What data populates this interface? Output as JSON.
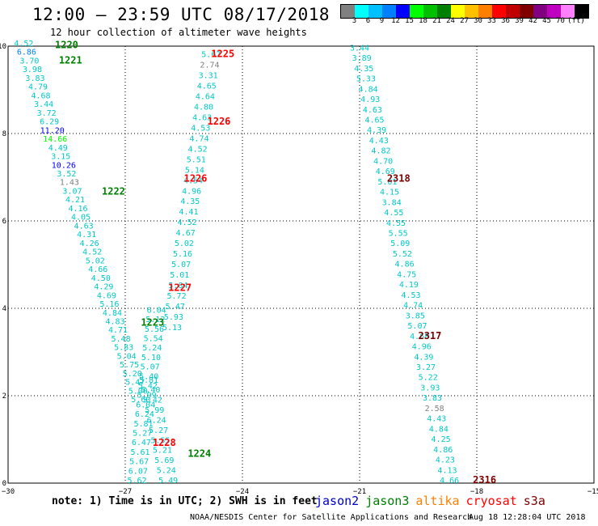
{
  "header": {
    "title": "12:00 – 23:59 UTC 08/17/2018",
    "subtitle": "12 hour collection of altimeter wave heights"
  },
  "legend": {
    "colors": [
      "#808080",
      "#00ffff",
      "#00c0ff",
      "#0080ff",
      "#0000ff",
      "#00ff00",
      "#00c000",
      "#008000",
      "#ffff00",
      "#ffc000",
      "#ff8000",
      "#ff0000",
      "#c00000",
      "#800000",
      "#800080",
      "#c000c0",
      "#ff80ff",
      "#000000"
    ],
    "labels": [
      "3",
      "6",
      "9",
      "12",
      "15",
      "18",
      "21",
      "24",
      "27",
      "30",
      "33",
      "36",
      "39",
      "42",
      "45",
      "70",
      "(ft)"
    ]
  },
  "axes": {
    "x_ticks": [
      "−30",
      "−27",
      "−24",
      "−21",
      "−18",
      "−15"
    ],
    "y_ticks": [
      "0",
      "2",
      "4",
      "6",
      "8",
      "10"
    ]
  },
  "footer": {
    "note": "note: 1) Time is in UTC; 2) SWH is in feet",
    "satellites": [
      {
        "name": "jason2",
        "color": "#0000cc"
      },
      {
        "name": "jason3",
        "color": "#008000"
      },
      {
        "name": "altika",
        "color": "#ff8000"
      },
      {
        "name": "cryosat",
        "color": "#ff0000"
      },
      {
        "name": "s3a",
        "color": "#800000"
      }
    ],
    "credit": "NOAA/NESDIS Center for Satellite Applications and Research",
    "timestamp": "Aug 18 12:28:04 UTC 2018"
  },
  "chart_data": {
    "type": "scatter",
    "xlim": [
      -30,
      -15
    ],
    "ylim": [
      0,
      10
    ],
    "grid": true,
    "pass_labels": [
      {
        "text": "1220",
        "x": -28.8,
        "y": 9.95,
        "color": "#008000"
      },
      {
        "text": "1221",
        "x": -28.7,
        "y": 9.6,
        "color": "#008000"
      },
      {
        "text": "1222",
        "x": -27.6,
        "y": 6.6,
        "color": "#008000"
      },
      {
        "text": "1223",
        "x": -26.6,
        "y": 3.6,
        "color": "#008000"
      },
      {
        "text": "1224",
        "x": -25.4,
        "y": 0.6,
        "color": "#008000"
      },
      {
        "text": "1225",
        "x": -24.8,
        "y": 9.75,
        "color": "#ff0000"
      },
      {
        "text": "1226",
        "x": -24.9,
        "y": 8.2,
        "color": "#ff0000"
      },
      {
        "text": "1226",
        "x": -25.5,
        "y": 6.9,
        "color": "#ff0000"
      },
      {
        "text": "1227",
        "x": -25.9,
        "y": 4.4,
        "color": "#ff0000"
      },
      {
        "text": "1228",
        "x": -26.3,
        "y": 0.85,
        "color": "#ff0000"
      },
      {
        "text": "2318",
        "x": -20.3,
        "y": 6.9,
        "color": "#800000"
      },
      {
        "text": "2317",
        "x": -19.5,
        "y": 3.3,
        "color": "#800000"
      },
      {
        "text": "2316",
        "x": -18.1,
        "y": 0.0,
        "color": "#800000"
      }
    ],
    "tracks": [
      {
        "name": "track-a",
        "start": [
          -29.6,
          10.0
        ],
        "end": [
          -26.6,
          1.85
        ],
        "values": [
          "4.52",
          "6.86",
          "3.70",
          "3.98",
          "3.83",
          "4.79",
          "4.68",
          "3.44",
          "3.72",
          "6.29",
          "11.20",
          "14.66",
          "4.49",
          "3.15",
          "10.26",
          "3.52",
          "1.43",
          "3.07",
          "4.21",
          "4.16",
          "4.05",
          "4.63",
          "4.31",
          "4.26",
          "4.52",
          "5.02",
          "4.66",
          "4.50",
          "4.29",
          "4.69",
          "5.16",
          "4.84",
          "4.83",
          "4.71",
          "5.48",
          "5.83",
          "5.04",
          "5.75",
          "5.20",
          "5.47",
          "5.00",
          "5.60"
        ],
        "colors": {
          "6.86": "#0080ff",
          "11.20": "#0000ff",
          "14.66": "#00ff00",
          "10.26": "#0000ff",
          "1.43": "#808080"
        }
      },
      {
        "name": "track-b",
        "start": [
          -26.2,
          3.9
        ],
        "end": [
          -26.7,
          0.0
        ],
        "values": [
          "6.04",
          "5.12",
          "5.56",
          "5.54",
          "5.24",
          "5.10",
          "5.07",
          "5.40",
          "5.42",
          "5.99",
          "6.04",
          "6.24",
          "5.81",
          "5.27",
          "6.47",
          "5.61",
          "5.67",
          "6.07",
          "5.62"
        ],
        "colors": {}
      },
      {
        "name": "track-c",
        "start": [
          -24.8,
          9.75
        ],
        "end": [
          -25.8,
          3.5
        ],
        "values": [
          "5.67",
          "2.74",
          "3.31",
          "4.65",
          "4.64",
          "4.80",
          "4.63",
          "4.53",
          "4.74",
          "4.52",
          "5.51",
          "5.14",
          "4.54",
          "4.96",
          "4.35",
          "4.41",
          "4.52",
          "4.67",
          "5.02",
          "5.16",
          "5.07",
          "5.01",
          "5.84",
          "5.72",
          "5.47",
          "5.93",
          "5.13"
        ],
        "colors": {
          "2.74": "#808080"
        }
      },
      {
        "name": "track-d",
        "start": [
          -26.4,
          2.3
        ],
        "end": [
          -25.9,
          0.0
        ],
        "values": [
          "5.81",
          "5.40",
          "5.42",
          "5.99",
          "6.24",
          "5.27",
          "5.55",
          "5.21",
          "5.69",
          "5.24",
          "5.49"
        ],
        "colors": {}
      },
      {
        "name": "track-e",
        "start": [
          -21.0,
          9.9
        ],
        "end": [
          -18.7,
          0.0
        ],
        "values": [
          "3.44",
          "3.89",
          "4.35",
          "5.33",
          "4.84",
          "4.93",
          "4.63",
          "4.65",
          "4.39",
          "4.43",
          "4.82",
          "4.70",
          "4.69",
          "5.01",
          "4.15",
          "3.84",
          "4.55",
          "4.55",
          "5.55",
          "5.09",
          "5.52",
          "4.86",
          "4.75",
          "4.19",
          "4.53",
          "4.74",
          "3.85",
          "5.07",
          "4.68",
          "4.96",
          "4.39",
          "3.27",
          "5.22",
          "3.93",
          "3.83",
          "2.58",
          "4.43",
          "4.84",
          "4.25",
          "4.86",
          "4.23",
          "4.13",
          "4.66"
        ],
        "colors": {
          "2.58": "#808080"
        }
      }
    ]
  }
}
